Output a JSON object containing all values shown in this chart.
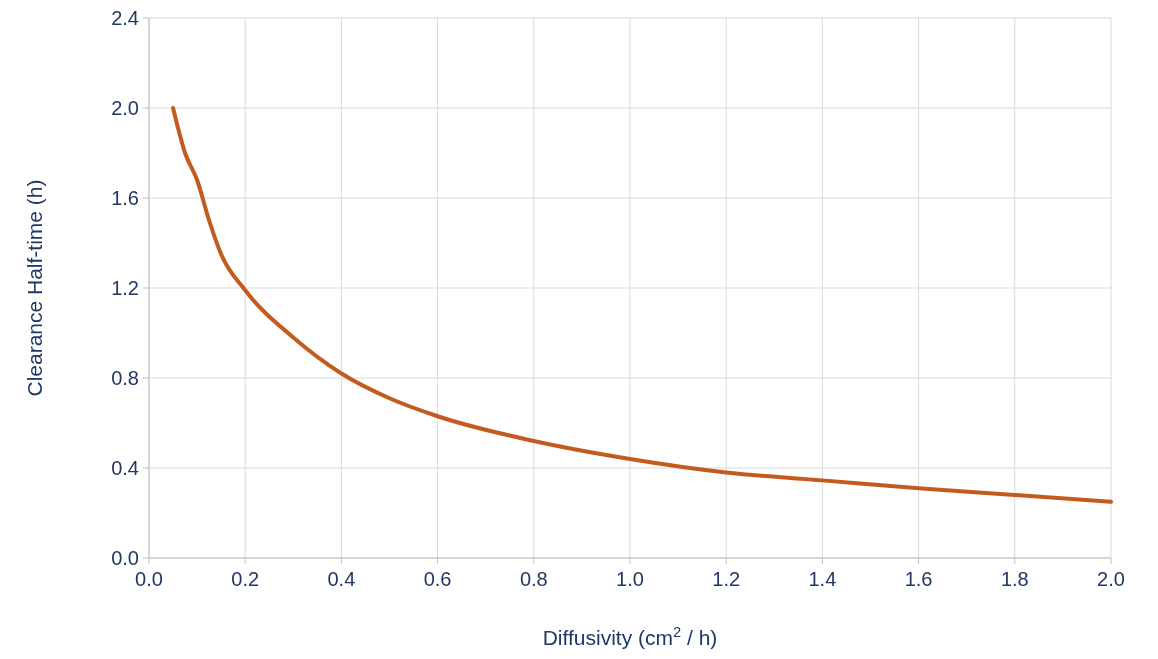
{
  "chart_data": {
    "type": "line",
    "xlabel": "Diffusivity (cm$^{2}$ / h)",
    "ylabel": "Clearance Half-time (h)",
    "x": [
      0.05,
      0.075,
      0.1,
      0.125,
      0.15,
      0.2,
      0.3,
      0.4,
      0.5,
      0.6,
      0.8,
      1.0,
      1.2,
      1.4,
      1.6,
      1.8,
      2.0
    ],
    "series": [
      {
        "color": "#c55a1e",
        "values": [
          2.0,
          1.8,
          1.68,
          1.5,
          1.35,
          1.19,
          0.98,
          0.82,
          0.71,
          0.63,
          0.52,
          0.44,
          0.38,
          0.345,
          0.31,
          0.28,
          0.25
        ]
      }
    ],
    "xlim": [
      0,
      2
    ],
    "ylim": [
      0,
      2.4
    ],
    "xticks": [
      {
        "value": 0,
        "label": "0.0"
      },
      0.2,
      0.4,
      0.6,
      0.8,
      {
        "value": 1,
        "label": "1.0"
      },
      1.2,
      1.4,
      1.6,
      1.8,
      {
        "value": 2,
        "label": "2.0"
      }
    ],
    "yticks": [
      {
        "value": 0,
        "label": "0.0"
      },
      0.4,
      0.8,
      1.2,
      1.6,
      {
        "value": 2,
        "label": "2.0"
      },
      2.4
    ],
    "grid": true,
    "marker": "none",
    "line_style": "solid"
  }
}
